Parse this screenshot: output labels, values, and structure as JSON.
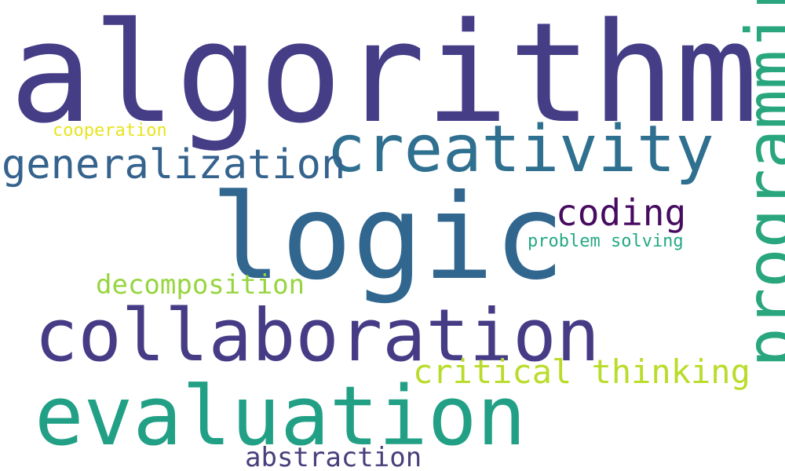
{
  "words": {
    "algorithm": {
      "text": "algorithm",
      "color": "#453d86"
    },
    "logic": {
      "text": "logic",
      "color": "#31668f"
    },
    "creativity": {
      "text": "creativity",
      "color": "#2f6f8f"
    },
    "collaboration": {
      "text": "collaboration",
      "color": "#463c86"
    },
    "evaluation": {
      "text": "evaluation",
      "color": "#22a085"
    },
    "generalization": {
      "text": "generalization",
      "color": "#35638d"
    },
    "coding": {
      "text": "coding",
      "color": "#470b60"
    },
    "decomposition": {
      "text": "decomposition",
      "color": "#97d53f"
    },
    "critical_thinking": {
      "text": "critical thinking",
      "color": "#b9dc2a"
    },
    "problem_solving": {
      "text": "problem solving",
      "color": "#25a884"
    },
    "cooperation": {
      "text": "cooperation",
      "color": "#e7e41f"
    },
    "abstraction": {
      "text": "abstraction",
      "color": "#47407b"
    },
    "programming": {
      "text": "programming",
      "color": "#2aa67e"
    }
  }
}
